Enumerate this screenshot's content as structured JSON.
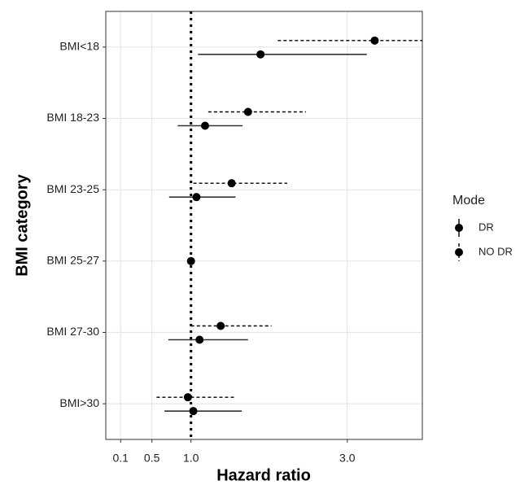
{
  "chart_data": {
    "type": "forest",
    "xlabel": "Hazard ratio",
    "ylabel": "BMI category",
    "categories": [
      "BMI<18",
      "BMI 18-23",
      "BMI 23-25",
      "BMI 25-27",
      "BMI 27-30",
      "BMI>30"
    ],
    "xlim": [
      -0.09,
      3.96
    ],
    "xticks": [
      0.1,
      0.5,
      {
        "value": 1,
        "label": "1.0"
      },
      {
        "value": 3,
        "label": "3.0"
      }
    ],
    "refline": 1,
    "grid": true,
    "legend_title": "Mode",
    "legend": "right",
    "series": [
      {
        "name": "DR",
        "color": "#000000",
        "dashed": false,
        "values": [
          1.89,
          1.18,
          1.07,
          1.0,
          1.11,
          1.03
        ],
        "lower": [
          1.09,
          0.83,
          0.72,
          null,
          0.71,
          0.66
        ],
        "upper": [
          3.25,
          1.66,
          1.57,
          null,
          1.73,
          1.65
        ]
      },
      {
        "name": "NO DR",
        "color": "#000000",
        "dashed": true,
        "values": [
          3.35,
          1.73,
          1.52,
          null,
          1.38,
          0.96
        ],
        "lower": [
          2.11,
          1.22,
          1.03,
          null,
          1.0,
          0.56
        ],
        "upper": [
          3.96,
          2.47,
          2.23,
          null,
          2.03,
          1.58
        ]
      }
    ]
  }
}
